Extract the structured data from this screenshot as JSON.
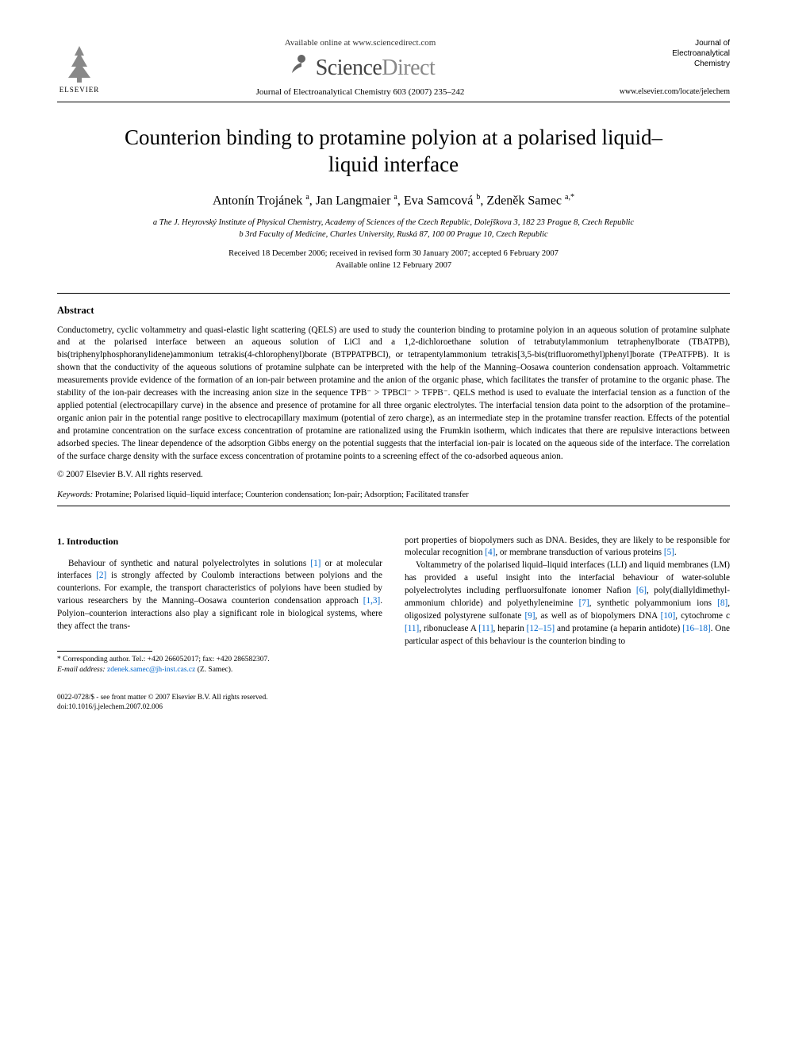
{
  "header": {
    "publisher": "ELSEVIER",
    "avail_online": "Available online at www.sciencedirect.com",
    "sd_brand_a": "Science",
    "sd_brand_b": "Direct",
    "journal_ref": "Journal of Electroanalytical Chemistry 603 (2007) 235–242",
    "journal_box_small": "Journal of",
    "journal_box_bold": "Electroanalytical\nChemistry",
    "journal_url": "www.elsevier.com/locate/jelechem"
  },
  "title": "Counterion binding to protamine polyion at a polarised liquid–liquid interface",
  "authors_html": "Antonín Trojánek <sup>a</sup>, Jan Langmaier <sup>a</sup>, Eva Samcová <sup>b</sup>, Zdeněk Samec <sup>a,*</sup>",
  "affiliations": [
    "a The J. Heyrovský Institute of Physical Chemistry, Academy of Sciences of the Czech Republic, Dolejškova 3, 182 23 Prague 8, Czech Republic",
    "b 3rd Faculty of Medicine, Charles University, Ruská 87, 100 00 Prague 10, Czech Republic"
  ],
  "dates": [
    "Received 18 December 2006; received in revised form 30 January 2007; accepted 6 February 2007",
    "Available online 12 February 2007"
  ],
  "abstract_head": "Abstract",
  "abstract_body": "Conductometry, cyclic voltammetry and quasi-elastic light scattering (QELS) are used to study the counterion binding to protamine polyion in an aqueous solution of protamine sulphate and at the polarised interface between an aqueous solution of LiCl and a 1,2-dichloroethane solution of tetrabutylammonium tetraphenylborate (TBATPB), bis(triphenylphosphoranylidene)ammonium tetrakis(4-chlorophenyl)borate (BTPPATPBCl), or tetrapentylammonium tetrakis[3,5-bis(trifluoromethyl)phenyl]borate (TPeATFPB). It is shown that the conductivity of the aqueous solutions of protamine sulphate can be interpreted with the help of the Manning–Oosawa counterion condensation approach. Voltammetric measurements provide evidence of the formation of an ion-pair between protamine and the anion of the organic phase, which facilitates the transfer of protamine to the organic phase. The stability of the ion-pair decreases with the increasing anion size in the sequence TPB⁻ > TPBCl⁻ > TFPB⁻. QELS method is used to evaluate the interfacial tension as a function of the applied potential (electrocapillary curve) in the absence and presence of protamine for all three organic electrolytes. The interfacial tension data point to the adsorption of the protamine–organic anion pair in the potential range positive to electrocapillary maximum (potential of zero charge), as an intermediate step in the protamine transfer reaction. Effects of the potential and protamine concentration on the surface excess concentration of protamine are rationalized using the Frumkin isotherm, which indicates that there are repulsive interactions between adsorbed species. The linear dependence of the adsorption Gibbs energy on the potential suggests that the interfacial ion-pair is located on the aqueous side of the interface. The correlation of the surface charge density with the surface excess concentration of protamine points to a screening effect of the co-adsorbed aqueous anion.",
  "copyright": "© 2007 Elsevier B.V. All rights reserved.",
  "keywords_label": "Keywords:",
  "keywords": "Protamine; Polarised liquid–liquid interface; Counterion condensation; Ion-pair; Adsorption; Facilitated transfer",
  "section1_head": "1. Introduction",
  "col_left_p1_pre": "Behaviour of synthetic and natural polyelectrolytes in solutions ",
  "ref1a": "[1]",
  "col_left_p1_mid1": " or at molecular interfaces ",
  "ref2": "[2]",
  "col_left_p1_mid2": " is strongly affected by Coulomb interactions between polyions and the counterions. For example, the transport characteristics of polyions have been studied by various researchers by the Manning–Oosawa counterion condensation approach ",
  "ref13": "[1,3]",
  "col_left_p1_end": ". Polyion–counterion interactions also play a significant role in biological systems, where they affect the trans-",
  "col_right_p1_pre": "port properties of biopolymers such as DNA. Besides, they are likely to be responsible for molecular recognition ",
  "ref4": "[4]",
  "col_right_p1_mid": ", or membrane transduction of various proteins ",
  "ref5": "[5]",
  "col_right_p1_end": ".",
  "col_right_p2_pre": "Voltammetry of the polarised liquid–liquid interfaces (LLI) and liquid membranes (LM) has provided a useful insight into the interfacial behaviour of water-soluble polyelectrolytes including perfluorsulfonate ionomer Nafion ",
  "ref6": "[6]",
  "col_right_p2_m1": ", poly(diallyldimethyl-ammonium chloride) and polyethyleneimine ",
  "ref7": "[7]",
  "col_right_p2_m2": ", synthetic polyammonium ions ",
  "ref8": "[8]",
  "col_right_p2_m3": ", oligosized polystyrene sulfonate ",
  "ref9": "[9]",
  "col_right_p2_m4": ", as well as of biopolymers DNA ",
  "ref10": "[10]",
  "col_right_p2_m5": ", cytochrome c ",
  "ref11a": "[11]",
  "col_right_p2_m6": ", ribonuclease A ",
  "ref11b": "[11]",
  "col_right_p2_m7": ", heparin ",
  "ref1215": "[12–15]",
  "col_right_p2_m8": " and protamine (a heparin antidote) ",
  "ref1618": "[16–18]",
  "col_right_p2_end": ". One particular aspect of this behaviour is the counterion binding to",
  "footnote_corr": "* Corresponding author. Tel.: +420 266052017; fax: +420 286582307.",
  "footnote_email_label": "E-mail address:",
  "footnote_email": "zdenek.samec@jh-inst.cas.cz",
  "footnote_email_tail": " (Z. Samec).",
  "bottom_issn": "0022-0728/$ - see front matter © 2007 Elsevier B.V. All rights reserved.",
  "bottom_doi": "doi:10.1016/j.jelechem.2007.02.006",
  "colors": {
    "link": "#0066cc",
    "text": "#000000",
    "bg": "#ffffff",
    "sd_light": "#888888",
    "sd_dark": "#444444"
  }
}
